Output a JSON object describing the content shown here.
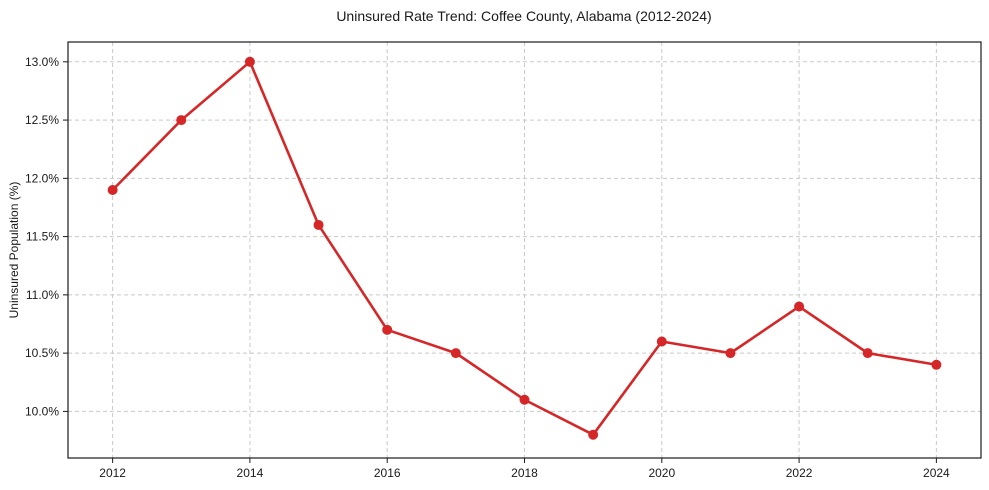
{
  "chart_data": {
    "type": "line",
    "title": "Uninsured Rate Trend: Coffee County, Alabama (2012-2024)",
    "xlabel": "",
    "ylabel": "Uninsured Population (%)",
    "x": [
      2012,
      2013,
      2014,
      2015,
      2016,
      2017,
      2018,
      2019,
      2020,
      2021,
      2022,
      2023,
      2024
    ],
    "values": [
      11.9,
      12.5,
      13.0,
      11.6,
      10.7,
      10.5,
      10.1,
      9.8,
      10.6,
      10.5,
      10.9,
      10.5,
      10.4
    ],
    "xticks": {
      "values": [
        2012,
        2014,
        2016,
        2018,
        2020,
        2022,
        2024
      ],
      "labels": [
        "2012",
        "2014",
        "2016",
        "2018",
        "2020",
        "2022",
        "2024"
      ]
    },
    "yticks": {
      "values": [
        10.0,
        10.5,
        11.0,
        11.5,
        12.0,
        12.5,
        13.0
      ],
      "labels": [
        "10.0%",
        "10.5%",
        "11.0%",
        "11.5%",
        "12.0%",
        "12.5%",
        "13.0%"
      ]
    },
    "xlim": [
      2011.35,
      2024.65
    ],
    "ylim": [
      9.6,
      13.17
    ],
    "grid": true,
    "grid_style": "dashed",
    "legend": false,
    "colors": {
      "line": "#d62728",
      "marker": "#d62728",
      "grid": "#c9c9c9",
      "spine": "#1a1a1a",
      "text": "#1a1a1a",
      "background": "#ffffff"
    }
  }
}
